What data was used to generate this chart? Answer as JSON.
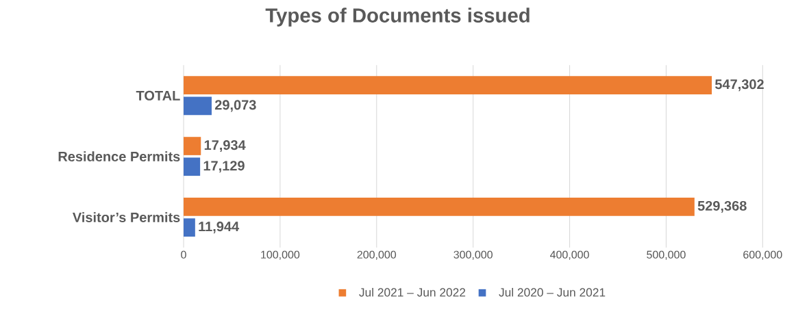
{
  "chart_data": {
    "type": "bar",
    "title": "Types of Documents issued",
    "orientation": "horizontal",
    "categories": [
      "TOTAL",
      "Residence Permits",
      "Visitor’s Permits"
    ],
    "series": [
      {
        "name": "Jul 2021 – Jun 2022",
        "color": "#ed7d31",
        "values": [
          547302,
          17934,
          529368
        ],
        "value_labels": [
          "547,302",
          "17,934",
          "529,368"
        ]
      },
      {
        "name": "Jul 2020 – Jun 2021",
        "color": "#4472c4",
        "values": [
          29073,
          17129,
          11944
        ],
        "value_labels": [
          "29,073",
          "17,129",
          "11,944"
        ]
      }
    ],
    "xlim": [
      0,
      600000
    ],
    "xticks": [
      0,
      {
        "value": 100000,
        "label": "100,000"
      },
      {
        "value": 200000,
        "label": "200,000"
      },
      {
        "value": 300000,
        "label": "300,000"
      },
      {
        "value": 400000,
        "label": "400,000"
      },
      {
        "value": 500000,
        "label": "500,000"
      },
      {
        "value": 600000,
        "label": "600,000"
      }
    ],
    "grid": "x",
    "legend": "bottom"
  }
}
